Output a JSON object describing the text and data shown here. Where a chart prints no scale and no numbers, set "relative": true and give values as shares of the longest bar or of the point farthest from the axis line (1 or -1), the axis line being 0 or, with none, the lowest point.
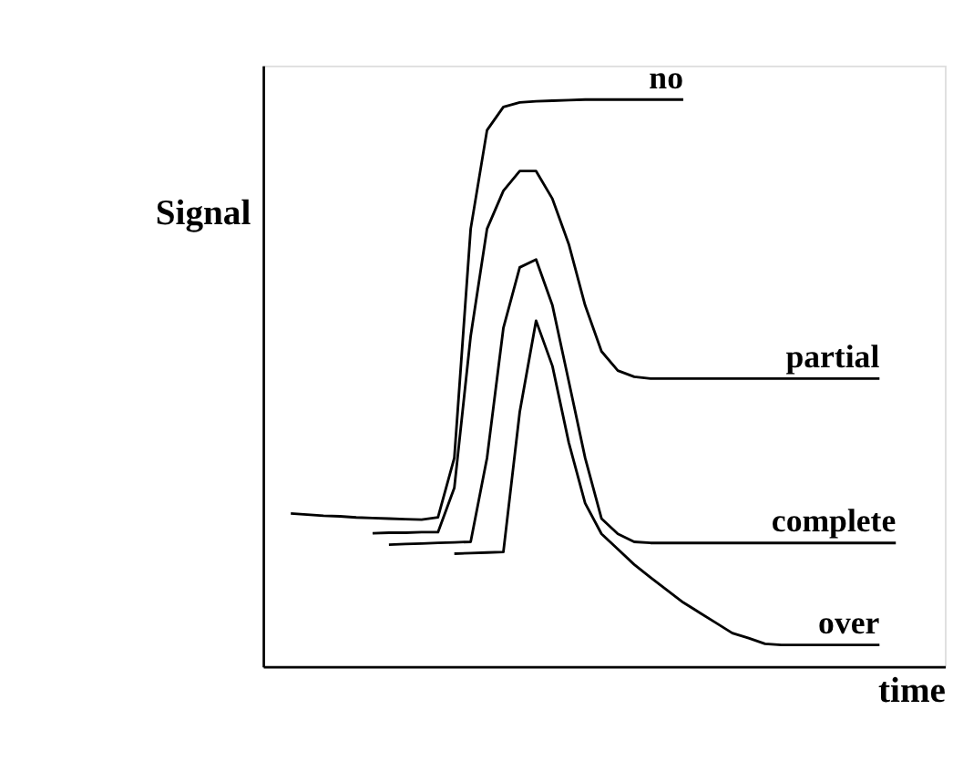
{
  "chart_data": {
    "type": "line",
    "relative": true,
    "xlabel": "time",
    "ylabel": "Signal",
    "legend": false,
    "grid": false,
    "tick_labels": false,
    "line_style": "solid",
    "marker": "none",
    "categories": [
      null,
      null,
      null,
      null,
      null,
      null,
      null,
      null,
      null,
      null,
      null,
      null,
      null,
      null,
      null,
      null,
      null,
      null,
      null,
      null,
      null,
      null,
      null,
      null,
      null,
      null,
      null,
      null,
      null,
      null,
      null,
      null,
      null,
      null,
      null,
      null,
      null,
      null,
      null,
      null,
      null
    ],
    "series": [
      {
        "name": "no",
        "color": "#000000",
        "values": [
          null,
          0.27,
          0.268,
          0.266,
          0.265,
          0.263,
          0.262,
          0.261,
          0.26,
          0.259,
          0.263,
          0.368,
          0.772,
          0.946,
          0.987,
          0.995,
          0.997,
          0.998,
          0.999,
          1,
          1,
          1,
          1,
          1,
          1,
          1,
          null,
          null,
          null,
          null,
          null,
          null,
          null,
          null,
          null,
          null,
          null,
          null,
          null,
          null,
          null
        ]
      },
      {
        "name": "partial",
        "color": "#000000",
        "values": [
          null,
          null,
          null,
          null,
          null,
          null,
          0.235,
          0.236,
          0.236,
          0.237,
          0.237,
          0.315,
          0.583,
          0.772,
          0.839,
          0.874,
          0.874,
          0.825,
          0.745,
          0.637,
          0.556,
          0.522,
          0.511,
          0.508,
          0.508,
          0.508,
          0.508,
          0.508,
          0.508,
          0.508,
          0.508,
          0.508,
          0.508,
          0.508,
          0.508,
          0.508,
          0.508,
          0.508,
          null,
          null,
          null
        ]
      },
      {
        "name": "complete",
        "color": "#000000",
        "values": [
          null,
          null,
          null,
          null,
          null,
          null,
          null,
          0.215,
          0.216,
          0.217,
          0.218,
          0.219,
          0.22,
          0.368,
          0.597,
          0.704,
          0.718,
          0.637,
          0.503,
          0.368,
          0.261,
          0.234,
          0.22,
          0.218,
          0.218,
          0.218,
          0.218,
          0.218,
          0.218,
          0.218,
          0.218,
          0.218,
          0.218,
          0.218,
          0.218,
          0.218,
          0.218,
          0.218,
          0.218,
          null,
          null
        ]
      },
      {
        "name": "over",
        "color": "#000000",
        "values": [
          null,
          null,
          null,
          null,
          null,
          null,
          null,
          null,
          null,
          null,
          null,
          0.199,
          0.2,
          0.201,
          0.202,
          0.449,
          0.61,
          0.53,
          0.395,
          0.288,
          0.234,
          0.207,
          0.18,
          0.157,
          0.135,
          0.113,
          0.095,
          0.077,
          0.059,
          0.05,
          0.04,
          0.038,
          0.038,
          0.038,
          0.038,
          0.038,
          0.038,
          0.038,
          null,
          null,
          null
        ]
      }
    ]
  }
}
